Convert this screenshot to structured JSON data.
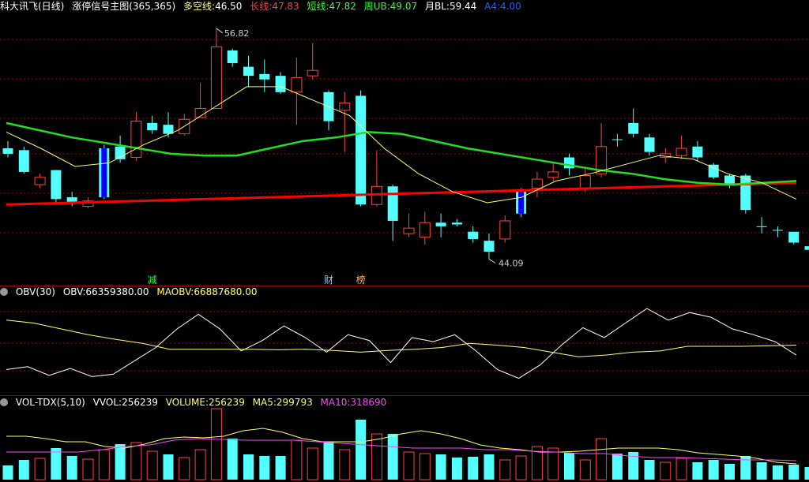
{
  "main_header": {
    "stock": "科大讯飞(日线)",
    "indicator": "涨停信号主图(365,365)",
    "dkx_label": "多空线:",
    "dkx_value": "46.50",
    "long_label": "长线:",
    "long_value": "47.83",
    "short_label": "短线:",
    "short_value": "47.82",
    "week_label": "周UB:",
    "week_value": "49.07",
    "month_label": "月BL:",
    "month_value": "59.44",
    "a4_label": "A4:",
    "a4_value": "4.00"
  },
  "annotations": {
    "high": "56.82",
    "low": "44.09",
    "markers": [
      "减",
      "财",
      "榜"
    ]
  },
  "obv_header": {
    "name": "OBV(30)",
    "obv_label": "OBV:",
    "obv_value": "66359380.00",
    "maobv_label": "MAOBV:",
    "maobv_value": "66887680.00"
  },
  "vol_header": {
    "name": "VOL-TDX(5,10)",
    "vvol_label": "VVOL:",
    "vvol_value": "256239",
    "volume_label": "VOLUME:",
    "volume_value": "256239",
    "ma5_label": "MA5:",
    "ma5_value": "299793",
    "ma10_label": "MA10:",
    "ma10_value": "318690"
  },
  "colors": {
    "up": "#ff4040",
    "down": "#54ffff",
    "signal": "#0000ff",
    "long_line": "#ff0000",
    "mid_line": "#22dd22",
    "short_line": "#ffff66",
    "obv": "#ffffff",
    "maobv": "#ffff66",
    "ma5": "#ffff66",
    "ma10": "#ff44ff",
    "grid": "#a00000"
  },
  "chart_data": {
    "type": "candlestick",
    "price_range": [
      44.09,
      56.82
    ],
    "candles": [
      {
        "o": 50.2,
        "c": 49.9,
        "h": 50.6,
        "l": 49.7,
        "dir": "down"
      },
      {
        "o": 50.1,
        "c": 48.9,
        "h": 50.3,
        "l": 48.8,
        "dir": "down"
      },
      {
        "o": 48.2,
        "c": 48.6,
        "h": 48.8,
        "l": 48.0,
        "dir": "up"
      },
      {
        "o": 49.0,
        "c": 47.4,
        "h": 49.0,
        "l": 47.2,
        "dir": "down"
      },
      {
        "o": 47.5,
        "c": 47.2,
        "h": 47.8,
        "l": 47.0,
        "dir": "down"
      },
      {
        "o": 47.0,
        "c": 47.3,
        "h": 47.5,
        "l": 46.9,
        "dir": "up"
      },
      {
        "o": 47.5,
        "c": 50.2,
        "h": 50.4,
        "l": 47.4,
        "dir": "signal"
      },
      {
        "o": 50.3,
        "c": 49.6,
        "h": 50.9,
        "l": 49.4,
        "dir": "down"
      },
      {
        "o": 49.7,
        "c": 51.7,
        "h": 52.2,
        "l": 49.5,
        "dir": "up"
      },
      {
        "o": 51.6,
        "c": 51.2,
        "h": 52.0,
        "l": 51.0,
        "dir": "down"
      },
      {
        "o": 51.5,
        "c": 51.0,
        "h": 52.2,
        "l": 50.8,
        "dir": "down"
      },
      {
        "o": 51.0,
        "c": 51.8,
        "h": 52.1,
        "l": 50.9,
        "dir": "up"
      },
      {
        "o": 51.9,
        "c": 52.4,
        "h": 53.8,
        "l": 51.9,
        "dir": "up"
      },
      {
        "o": 52.4,
        "c": 55.8,
        "h": 56.82,
        "l": 52.4,
        "dir": "up"
      },
      {
        "o": 55.6,
        "c": 54.9,
        "h": 55.7,
        "l": 54.7,
        "dir": "down"
      },
      {
        "o": 54.7,
        "c": 54.2,
        "h": 55.3,
        "l": 53.6,
        "dir": "down"
      },
      {
        "o": 54.3,
        "c": 54.0,
        "h": 55.1,
        "l": 53.3,
        "dir": "down"
      },
      {
        "o": 54.2,
        "c": 53.3,
        "h": 54.4,
        "l": 53.2,
        "dir": "down"
      },
      {
        "o": 53.3,
        "c": 54.1,
        "h": 55.2,
        "l": 51.5,
        "dir": "up"
      },
      {
        "o": 54.2,
        "c": 54.5,
        "h": 56.0,
        "l": 54.0,
        "dir": "up"
      },
      {
        "o": 53.3,
        "c": 51.7,
        "h": 53.4,
        "l": 51.2,
        "dir": "down"
      },
      {
        "o": 52.3,
        "c": 52.7,
        "h": 53.3,
        "l": 50.0,
        "dir": "up"
      },
      {
        "o": 53.1,
        "c": 47.1,
        "h": 53.4,
        "l": 47.0,
        "dir": "down"
      },
      {
        "o": 47.1,
        "c": 48.1,
        "h": 50.1,
        "l": 47.0,
        "dir": "up"
      },
      {
        "o": 48.1,
        "c": 46.2,
        "h": 48.2,
        "l": 45.1,
        "dir": "down"
      },
      {
        "o": 45.5,
        "c": 45.8,
        "h": 46.6,
        "l": 45.3,
        "dir": "up"
      },
      {
        "o": 45.3,
        "c": 46.1,
        "h": 46.7,
        "l": 44.9,
        "dir": "up"
      },
      {
        "o": 46.1,
        "c": 45.9,
        "h": 46.6,
        "l": 45.3,
        "dir": "down"
      },
      {
        "o": 46.1,
        "c": 46.0,
        "h": 46.3,
        "l": 45.9,
        "dir": "down"
      },
      {
        "o": 45.6,
        "c": 45.2,
        "h": 45.9,
        "l": 45.0,
        "dir": "down"
      },
      {
        "o": 45.1,
        "c": 44.5,
        "h": 45.5,
        "l": 44.09,
        "dir": "down"
      },
      {
        "o": 45.2,
        "c": 46.2,
        "h": 46.5,
        "l": 45.0,
        "dir": "up"
      },
      {
        "o": 46.6,
        "c": 47.8,
        "h": 48.0,
        "l": 46.4,
        "dir": "signal"
      },
      {
        "o": 48.0,
        "c": 48.5,
        "h": 48.9,
        "l": 47.5,
        "dir": "up"
      },
      {
        "o": 48.6,
        "c": 48.9,
        "h": 49.4,
        "l": 48.4,
        "dir": "up"
      },
      {
        "o": 49.7,
        "c": 49.1,
        "h": 49.9,
        "l": 48.7,
        "dir": "down"
      },
      {
        "o": 48.0,
        "c": 48.7,
        "h": 49.2,
        "l": 47.8,
        "dir": "up"
      },
      {
        "o": 48.8,
        "c": 50.3,
        "h": 51.6,
        "l": 48.6,
        "dir": "up"
      },
      {
        "o": 50.7,
        "c": 50.7,
        "h": 51.0,
        "l": 50.3,
        "dir": "down"
      },
      {
        "o": 51.6,
        "c": 51.0,
        "h": 52.4,
        "l": 50.8,
        "dir": "down"
      },
      {
        "o": 50.8,
        "c": 50.0,
        "h": 51.0,
        "l": 49.8,
        "dir": "down"
      },
      {
        "o": 49.7,
        "c": 49.9,
        "h": 50.2,
        "l": 49.4,
        "dir": "up"
      },
      {
        "o": 50.2,
        "c": 49.8,
        "h": 50.9,
        "l": 49.6,
        "dir": "up"
      },
      {
        "o": 50.3,
        "c": 49.7,
        "h": 50.6,
        "l": 49.5,
        "dir": "down"
      },
      {
        "o": 49.3,
        "c": 48.6,
        "h": 49.4,
        "l": 48.5,
        "dir": "down"
      },
      {
        "o": 48.7,
        "c": 48.2,
        "h": 48.8,
        "l": 48.0,
        "dir": "down"
      },
      {
        "o": 48.7,
        "c": 46.8,
        "h": 48.8,
        "l": 46.6,
        "dir": "down"
      },
      {
        "o": 45.9,
        "c": 45.9,
        "h": 46.4,
        "l": 45.5,
        "dir": "down"
      },
      {
        "o": 45.7,
        "c": 45.7,
        "h": 45.9,
        "l": 45.3,
        "dir": "down"
      },
      {
        "o": 45.6,
        "c": 45.0,
        "h": 45.6,
        "l": 44.9,
        "dir": "down"
      },
      {
        "o": 44.8,
        "c": 44.6,
        "h": 45.0,
        "l": 44.3,
        "dir": "down"
      }
    ],
    "long_line": [
      47.1,
      47.2,
      47.3,
      47.4,
      47.5,
      47.6,
      47.7,
      47.8,
      47.9,
      48.0,
      48.1,
      48.2,
      48.3
    ],
    "mid_line": [
      51.6,
      51.2,
      50.8,
      50.5,
      50.2,
      49.9,
      49.8,
      49.8,
      50.2,
      50.6,
      50.8,
      51.1,
      51.0,
      50.6,
      50.2,
      49.9,
      49.6,
      49.3,
      49.0,
      48.8,
      48.5,
      48.3,
      48.2,
      48.3,
      48.4
    ],
    "short_line": [
      51.1,
      50.2,
      49.2,
      49.4,
      50.4,
      51.2,
      52.4,
      53.6,
      53.6,
      52.8,
      52.0,
      50.2,
      48.8,
      47.8,
      47.2,
      47.5,
      48.4,
      48.8,
      49.3,
      49.8,
      49.6,
      48.8,
      48.3,
      47.4
    ],
    "obv": [
      40,
      45,
      30,
      42,
      28,
      32,
      55,
      78,
      110,
      135,
      110,
      72,
      90,
      115,
      95,
      70,
      100,
      90,
      52,
      95,
      88,
      100,
      72,
      40,
      25,
      48,
      82,
      112,
      95,
      120,
      145,
      125,
      138,
      130,
      110,
      100,
      88,
      65
    ],
    "maobv": [
      125,
      120,
      110,
      100,
      92,
      85,
      75,
      75,
      75,
      75,
      74,
      75,
      73,
      70,
      73,
      75,
      78,
      85,
      82,
      78,
      70,
      62,
      65,
      70,
      72,
      80,
      80,
      80,
      81,
      82
    ],
    "volume": [
      {
        "v": 18,
        "dir": "down"
      },
      {
        "v": 25,
        "dir": "down"
      },
      {
        "v": 27,
        "dir": "up"
      },
      {
        "v": 40,
        "dir": "down"
      },
      {
        "v": 30,
        "dir": "down"
      },
      {
        "v": 26,
        "dir": "up"
      },
      {
        "v": 38,
        "dir": "up"
      },
      {
        "v": 45,
        "dir": "down"
      },
      {
        "v": 47,
        "dir": "up"
      },
      {
        "v": 36,
        "dir": "up"
      },
      {
        "v": 32,
        "dir": "down"
      },
      {
        "v": 28,
        "dir": "up"
      },
      {
        "v": 38,
        "dir": "up"
      },
      {
        "v": 90,
        "dir": "up"
      },
      {
        "v": 52,
        "dir": "down"
      },
      {
        "v": 32,
        "dir": "down"
      },
      {
        "v": 30,
        "dir": "down"
      },
      {
        "v": 30,
        "dir": "down"
      },
      {
        "v": 50,
        "dir": "up"
      },
      {
        "v": 40,
        "dir": "up"
      },
      {
        "v": 48,
        "dir": "down"
      },
      {
        "v": 38,
        "dir": "up"
      },
      {
        "v": 76,
        "dir": "down"
      },
      {
        "v": 58,
        "dir": "up"
      },
      {
        "v": 58,
        "dir": "down"
      },
      {
        "v": 35,
        "dir": "up"
      },
      {
        "v": 33,
        "dir": "up"
      },
      {
        "v": 32,
        "dir": "down"
      },
      {
        "v": 28,
        "dir": "down"
      },
      {
        "v": 29,
        "dir": "down"
      },
      {
        "v": 32,
        "dir": "down"
      },
      {
        "v": 25,
        "dir": "up"
      },
      {
        "v": 30,
        "dir": "up"
      },
      {
        "v": 42,
        "dir": "up"
      },
      {
        "v": 40,
        "dir": "up"
      },
      {
        "v": 34,
        "dir": "down"
      },
      {
        "v": 25,
        "dir": "up"
      },
      {
        "v": 52,
        "dir": "up"
      },
      {
        "v": 33,
        "dir": "down"
      },
      {
        "v": 35,
        "dir": "down"
      },
      {
        "v": 25,
        "dir": "down"
      },
      {
        "v": 22,
        "dir": "up"
      },
      {
        "v": 27,
        "dir": "up"
      },
      {
        "v": 22,
        "dir": "down"
      },
      {
        "v": 25,
        "dir": "down"
      },
      {
        "v": 20,
        "dir": "down"
      },
      {
        "v": 30,
        "dir": "down"
      },
      {
        "v": 22,
        "dir": "down"
      },
      {
        "v": 18,
        "dir": "down"
      },
      {
        "v": 19,
        "dir": "down"
      },
      {
        "v": 16,
        "dir": "down"
      }
    ],
    "ma5": [
      55,
      55,
      52,
      48,
      48,
      42,
      40,
      45,
      52,
      54,
      53,
      55,
      62,
      65,
      60,
      52,
      48,
      48,
      48,
      52,
      58,
      62,
      58,
      52,
      44,
      40,
      38,
      35,
      35,
      36,
      38,
      40,
      40,
      40,
      38,
      34,
      32,
      30,
      27,
      22,
      20
    ],
    "ma10": [
      35,
      35,
      35,
      35,
      38,
      42,
      44,
      50,
      52,
      51,
      50,
      50,
      50,
      48,
      46,
      44,
      42,
      40,
      40,
      40,
      38,
      38,
      36,
      35,
      33,
      33,
      30,
      28,
      28,
      27,
      26,
      25,
      25,
      24
    ]
  }
}
